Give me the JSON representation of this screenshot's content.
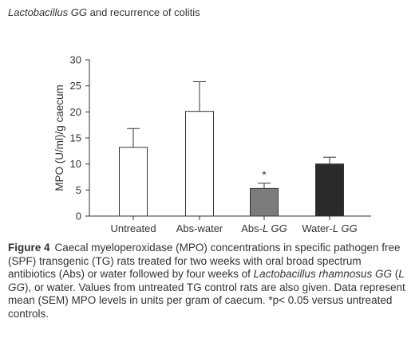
{
  "running_head": {
    "italic": "Lactobacillus GG",
    "rest": " and recurrence of colitis"
  },
  "chart_data": {
    "type": "bar",
    "ylabel": "MPO (U/ml)/g caecum",
    "ylim": [
      0,
      30
    ],
    "yticks": [
      "0",
      "5",
      "10",
      "15",
      "20",
      "25",
      "30"
    ],
    "categories": [
      {
        "plain": "Untreated",
        "italic": ""
      },
      {
        "plain": "Abs-water",
        "italic": ""
      },
      {
        "plain": "Abs-",
        "italic": "L GG"
      },
      {
        "plain": "Water-",
        "italic": "L GG"
      }
    ],
    "values": [
      13.2,
      20.1,
      5.3,
      10.0
    ],
    "errors": [
      3.6,
      5.7,
      1.0,
      1.3
    ],
    "fills": [
      "#ffffff",
      "#ffffff",
      "#7c7c7c",
      "#2a2a2a"
    ],
    "annotations": [
      "",
      "",
      "*",
      ""
    ]
  },
  "caption": {
    "label": "Figure 4",
    "parts": [
      {
        "t": "Caecal myeloperoxidase (MPO) concentrations in specific pathogen free (SPF) transgenic (TG) rats treated for two weeks with oral broad spectrum antibiotics (Abs) or water followed by four weeks of ",
        "i": false
      },
      {
        "t": "Lactobacillus rhamnosus GG",
        "i": true
      },
      {
        "t": " (",
        "i": false
      },
      {
        "t": "L GG",
        "i": true
      },
      {
        "t": "), or water. Values from untreated TG control rats are also given. Data represent mean (SEM) MPO levels in units per gram of caecum. *p< 0.05 versus untreated controls.",
        "i": false
      }
    ]
  }
}
